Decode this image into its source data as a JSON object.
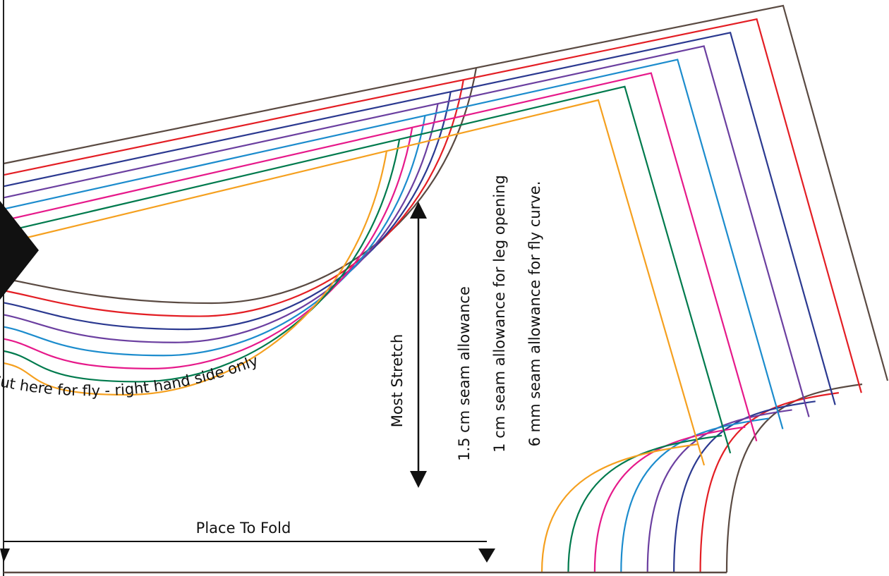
{
  "annotations": {
    "fly_cut": "Cut here for fly - right hand side only",
    "stretch": "Most Stretch",
    "seam_notes": [
      "1.5 cm seam allowance",
      "1 cm seam allowance for leg opening",
      "6 mm seam allowance for fly curve."
    ],
    "fold": "Place To Fold"
  }
}
